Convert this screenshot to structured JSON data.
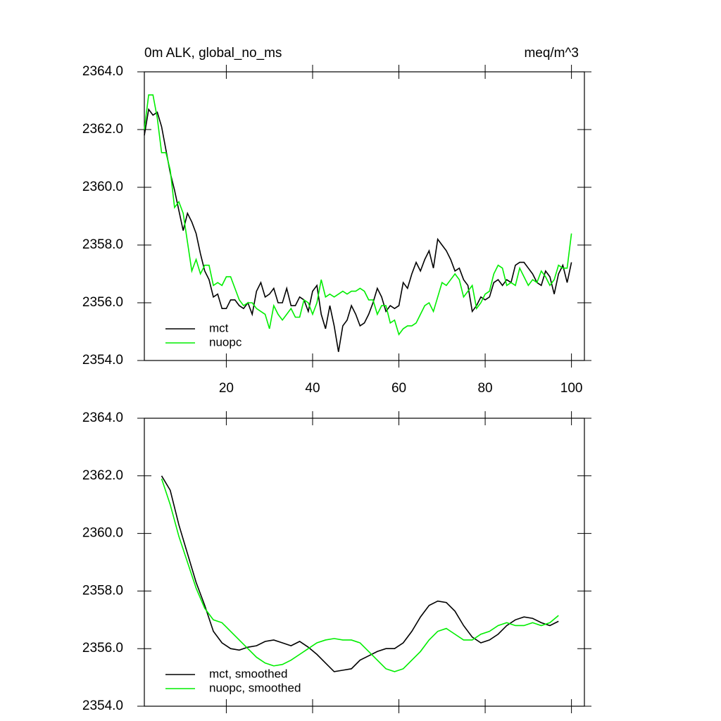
{
  "chart_data": [
    {
      "type": "line",
      "title": "0m ALK, global_no_ms",
      "units_label": "meq/m^3",
      "x": [
        1,
        2,
        3,
        4,
        5,
        6,
        7,
        8,
        9,
        10,
        11,
        12,
        13,
        14,
        15,
        16,
        17,
        18,
        19,
        20,
        21,
        22,
        23,
        24,
        25,
        26,
        27,
        28,
        29,
        30,
        31,
        32,
        33,
        34,
        35,
        36,
        37,
        38,
        39,
        40,
        41,
        42,
        43,
        44,
        45,
        46,
        47,
        48,
        49,
        50,
        51,
        52,
        53,
        54,
        55,
        56,
        57,
        58,
        59,
        60,
        61,
        62,
        63,
        64,
        65,
        66,
        67,
        68,
        69,
        70,
        71,
        72,
        73,
        74,
        75,
        76,
        77,
        78,
        79,
        80,
        81,
        82,
        83,
        84,
        85,
        86,
        87,
        88,
        89,
        90,
        91,
        92,
        93,
        94,
        95,
        96,
        97,
        98,
        99,
        100
      ],
      "series": [
        {
          "name": "mct",
          "color": "#000000",
          "values": [
            2361.8,
            2362.7,
            2362.5,
            2362.6,
            2362.1,
            2361.3,
            2360.5,
            2359.9,
            2359.2,
            2358.5,
            2359.1,
            2358.8,
            2358.4,
            2357.7,
            2357.1,
            2356.8,
            2356.2,
            2356.3,
            2355.8,
            2355.8,
            2356.1,
            2356.1,
            2355.9,
            2355.8,
            2356.0,
            2355.6,
            2356.4,
            2356.7,
            2356.2,
            2356.3,
            2356.5,
            2356.0,
            2356.0,
            2356.5,
            2355.9,
            2355.9,
            2356.2,
            2356.1,
            2355.7,
            2356.4,
            2356.6,
            2355.6,
            2355.1,
            2355.9,
            2355.2,
            2354.3,
            2355.2,
            2355.4,
            2355.9,
            2355.6,
            2355.2,
            2355.3,
            2355.6,
            2356.0,
            2356.5,
            2356.2,
            2355.7,
            2355.9,
            2355.8,
            2355.9,
            2356.7,
            2356.5,
            2357.0,
            2357.4,
            2357.1,
            2357.5,
            2357.8,
            2357.2,
            2358.2,
            2358.0,
            2357.8,
            2357.5,
            2357.1,
            2357.2,
            2356.8,
            2356.6,
            2355.7,
            2355.9,
            2356.2,
            2356.1,
            2356.2,
            2356.7,
            2356.8,
            2356.6,
            2356.8,
            2356.7,
            2357.3,
            2357.4,
            2357.4,
            2357.2,
            2357.0,
            2356.7,
            2356.6,
            2357.1,
            2356.9,
            2356.3,
            2357.0,
            2357.3,
            2356.7,
            2357.4
          ]
        },
        {
          "name": "nuopc",
          "color": "#00ee00",
          "values": [
            2362.0,
            2363.2,
            2363.2,
            2362.4,
            2361.2,
            2361.2,
            2360.6,
            2359.3,
            2359.5,
            2359.1,
            2358.1,
            2357.1,
            2357.5,
            2357.0,
            2357.3,
            2357.3,
            2356.6,
            2356.7,
            2356.6,
            2356.9,
            2356.9,
            2356.5,
            2356.1,
            2355.9,
            2356.0,
            2356.0,
            2355.8,
            2355.7,
            2355.6,
            2355.1,
            2355.9,
            2355.6,
            2355.4,
            2355.6,
            2355.8,
            2355.5,
            2355.5,
            2356.1,
            2356.0,
            2355.6,
            2356.0,
            2356.8,
            2356.2,
            2356.3,
            2356.2,
            2356.3,
            2356.4,
            2356.3,
            2356.4,
            2356.4,
            2356.5,
            2356.4,
            2356.1,
            2356.1,
            2355.6,
            2355.9,
            2355.9,
            2355.3,
            2355.4,
            2354.9,
            2355.1,
            2355.2,
            2355.2,
            2355.3,
            2355.6,
            2355.9,
            2356.0,
            2355.7,
            2356.2,
            2356.7,
            2356.6,
            2356.8,
            2357.0,
            2356.8,
            2356.2,
            2356.4,
            2356.6,
            2355.8,
            2356.0,
            2356.3,
            2356.4,
            2357.0,
            2357.3,
            2357.2,
            2356.6,
            2356.7,
            2356.6,
            2357.2,
            2356.9,
            2356.6,
            2356.8,
            2356.7,
            2357.1,
            2356.9,
            2356.6,
            2356.8,
            2357.3,
            2357.2,
            2357.2,
            2358.4
          ]
        }
      ],
      "xlim": [
        1,
        103
      ],
      "xticks": [
        20,
        40,
        60,
        80,
        100
      ],
      "xtick_labels": true,
      "ylim": [
        2354,
        2364
      ],
      "yticks": [
        {
          "value": 2354,
          "label": "2354.0"
        },
        {
          "value": 2356,
          "label": "2356.0"
        },
        {
          "value": 2358,
          "label": "2358.0"
        },
        {
          "value": 2360,
          "label": "2360.0"
        },
        {
          "value": 2362,
          "label": "2362.0"
        },
        {
          "value": 2364,
          "label": "2364.0"
        }
      ],
      "legend": "lower left"
    },
    {
      "type": "line",
      "x": [
        5,
        7,
        9,
        11,
        13,
        15,
        17,
        19,
        21,
        23,
        25,
        27,
        29,
        31,
        33,
        35,
        37,
        39,
        41,
        43,
        45,
        47,
        49,
        51,
        53,
        55,
        57,
        59,
        61,
        63,
        65,
        67,
        69,
        71,
        73,
        75,
        77,
        79,
        81,
        83,
        85,
        87,
        89,
        91,
        93,
        95,
        97
      ],
      "series": [
        {
          "name": "mct, smoothed",
          "color": "#000000",
          "values": [
            2362.0,
            2361.5,
            2360.3,
            2359.3,
            2358.3,
            2357.5,
            2356.6,
            2356.2,
            2356.0,
            2355.95,
            2356.05,
            2356.1,
            2356.25,
            2356.3,
            2356.2,
            2356.1,
            2356.25,
            2356.05,
            2355.8,
            2355.5,
            2355.2,
            2355.25,
            2355.3,
            2355.6,
            2355.75,
            2355.9,
            2356.0,
            2356.0,
            2356.2,
            2356.6,
            2357.1,
            2357.5,
            2357.65,
            2357.6,
            2357.3,
            2356.8,
            2356.4,
            2356.2,
            2356.3,
            2356.5,
            2356.8,
            2357.0,
            2357.1,
            2357.05,
            2356.9,
            2356.8,
            2356.95
          ]
        },
        {
          "name": "nuopc, smoothed",
          "color": "#00ee00",
          "values": [
            2361.9,
            2361.0,
            2359.9,
            2359.0,
            2358.1,
            2357.4,
            2357.0,
            2356.9,
            2356.6,
            2356.3,
            2356.0,
            2355.7,
            2355.5,
            2355.4,
            2355.45,
            2355.6,
            2355.8,
            2356.0,
            2356.2,
            2356.3,
            2356.35,
            2356.3,
            2356.3,
            2356.2,
            2355.9,
            2355.6,
            2355.3,
            2355.2,
            2355.3,
            2355.6,
            2355.9,
            2356.3,
            2356.6,
            2356.7,
            2356.5,
            2356.3,
            2356.3,
            2356.5,
            2356.6,
            2356.8,
            2356.9,
            2356.8,
            2356.8,
            2356.9,
            2356.8,
            2356.9,
            2357.15
          ]
        }
      ],
      "xlim": [
        1,
        103
      ],
      "xticks": [
        20,
        40,
        60,
        80,
        100
      ],
      "xtick_labels": false,
      "ylim": [
        2354,
        2364
      ],
      "yticks": [
        {
          "value": 2354,
          "label": "2354.0"
        },
        {
          "value": 2356,
          "label": "2356.0"
        },
        {
          "value": 2358,
          "label": "2358.0"
        },
        {
          "value": 2360,
          "label": "2360.0"
        },
        {
          "value": 2362,
          "label": "2362.0"
        },
        {
          "value": 2364,
          "label": "2364.0"
        }
      ],
      "legend": "lower left"
    }
  ]
}
